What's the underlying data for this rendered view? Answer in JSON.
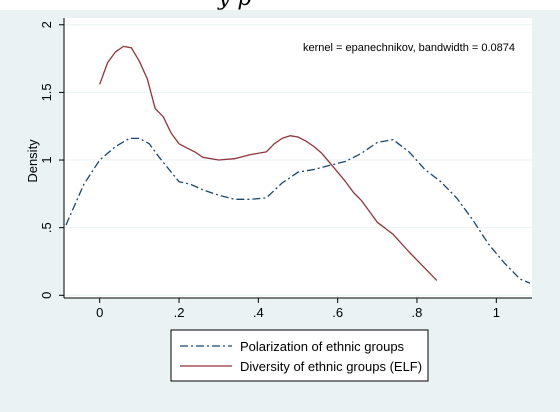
{
  "cropped_header_text": "y  p",
  "chart_data": {
    "type": "line",
    "xlabel": "",
    "ylabel": "Density",
    "xlim": [
      -0.09,
      1.09
    ],
    "ylim": [
      -0.02,
      2.05
    ],
    "x_ticks": [
      0,
      0.2,
      0.4,
      0.6,
      0.8,
      1
    ],
    "x_tick_labels": [
      "0",
      ".2",
      ".4",
      ".6",
      ".8",
      "1"
    ],
    "y_ticks": [
      0,
      0.5,
      1,
      1.5,
      2
    ],
    "y_tick_labels": [
      "0",
      ".5",
      "1",
      "1.5",
      "2"
    ],
    "annotation": "kernel = epanechnikov, bandwidth = 0.0874",
    "grid": "horizontal",
    "legend_position": "bottom",
    "series": [
      {
        "name": "Polarization of ethnic groups",
        "color": "#1a476f",
        "style": "dash-dot",
        "x": [
          -0.085,
          -0.04,
          0.0,
          0.04,
          0.075,
          0.1,
          0.125,
          0.15,
          0.175,
          0.2,
          0.23,
          0.26,
          0.3,
          0.34,
          0.38,
          0.42,
          0.46,
          0.5,
          0.54,
          0.58,
          0.62,
          0.66,
          0.7,
          0.74,
          0.78,
          0.82,
          0.86,
          0.9,
          0.94,
          0.98,
          1.02,
          1.06,
          1.085
        ],
        "y": [
          0.52,
          0.82,
          1.0,
          1.1,
          1.16,
          1.16,
          1.12,
          1.02,
          0.93,
          0.84,
          0.82,
          0.78,
          0.74,
          0.71,
          0.71,
          0.72,
          0.83,
          0.91,
          0.93,
          0.96,
          0.99,
          1.05,
          1.13,
          1.15,
          1.06,
          0.93,
          0.84,
          0.72,
          0.56,
          0.38,
          0.24,
          0.12,
          0.09
        ]
      },
      {
        "name": "Diversity of ethnic groups (ELF)",
        "color": "#90353b",
        "style": "solid",
        "x": [
          0.0,
          0.02,
          0.04,
          0.06,
          0.08,
          0.1,
          0.12,
          0.14,
          0.16,
          0.18,
          0.2,
          0.22,
          0.24,
          0.26,
          0.3,
          0.34,
          0.38,
          0.42,
          0.44,
          0.46,
          0.48,
          0.5,
          0.52,
          0.54,
          0.56,
          0.58,
          0.6,
          0.62,
          0.64,
          0.66,
          0.68,
          0.7,
          0.74,
          0.78,
          0.82,
          0.85
        ],
        "y": [
          1.56,
          1.72,
          1.8,
          1.84,
          1.83,
          1.73,
          1.6,
          1.38,
          1.32,
          1.2,
          1.12,
          1.09,
          1.06,
          1.02,
          1.0,
          1.01,
          1.04,
          1.06,
          1.12,
          1.16,
          1.18,
          1.17,
          1.14,
          1.1,
          1.05,
          0.98,
          0.91,
          0.84,
          0.76,
          0.7,
          0.62,
          0.54,
          0.45,
          0.32,
          0.2,
          0.11
        ]
      }
    ]
  }
}
